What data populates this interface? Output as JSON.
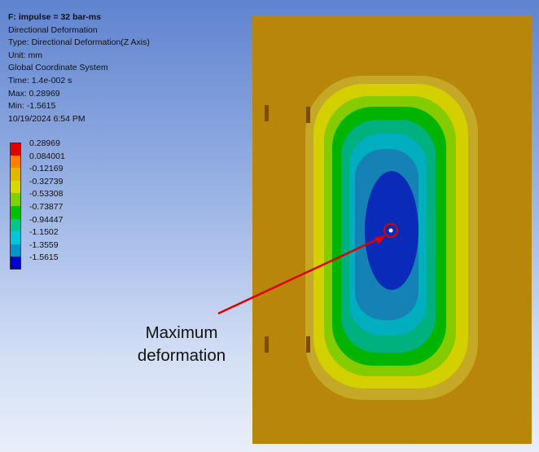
{
  "result_info": {
    "title": "F: impulse = 32 bar-ms",
    "result_name": "Directional Deformation",
    "type": "Type: Directional Deformation(Z Axis)",
    "unit": "Unit: mm",
    "coordinate_system": "Global Coordinate System",
    "time": "Time: 1.4e-002 s",
    "max": "Max: 0.28969",
    "min": "Min: -1.5615",
    "timestamp": "10/19/2024 6:54 PM"
  },
  "legend": [
    {
      "label": "0.28969",
      "color": "#e30000"
    },
    {
      "label": "0.084001",
      "color": "#ff7f00"
    },
    {
      "label": "-0.12169",
      "color": "#e3b600"
    },
    {
      "label": "-0.32739",
      "color": "#d8d800"
    },
    {
      "label": "-0.53308",
      "color": "#7ed200"
    },
    {
      "label": "-0.73877",
      "color": "#00c200"
    },
    {
      "label": "-0.94447",
      "color": "#00c88c"
    },
    {
      "label": "-1.1502",
      "color": "#00c8d8"
    },
    {
      "label": "-1.3559",
      "color": "#0096c8"
    },
    {
      "label": "-1.5615",
      "color": "#0000cc"
    }
  ],
  "model": {
    "plate_color": "#b8860b",
    "contour_colors": [
      "#c6a827",
      "#d4d000",
      "#84cc00",
      "#00b400",
      "#00b07e",
      "#00aec0",
      "#1482b4",
      "#0a2ab8"
    ]
  },
  "annotation": {
    "label_line1": "Maximum",
    "label_line2": "deformation",
    "arrow_color": "#e00000"
  }
}
